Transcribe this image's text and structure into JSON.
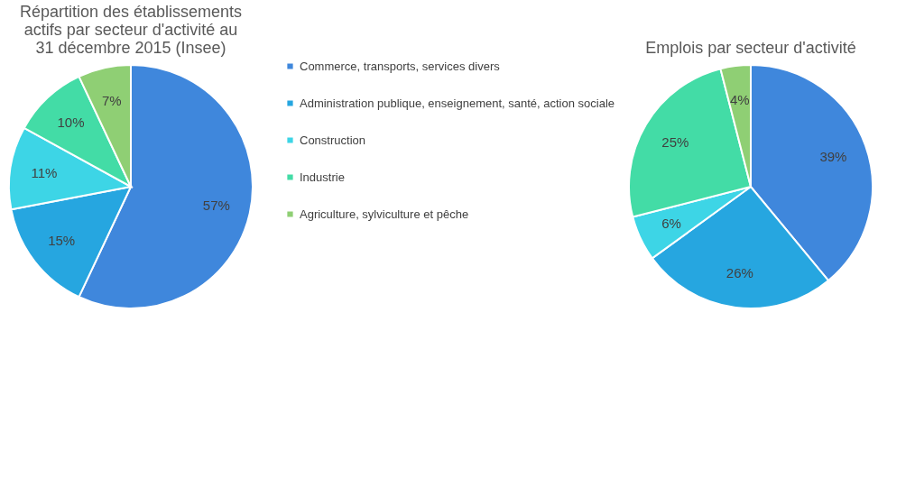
{
  "chart_data": [
    {
      "type": "pie",
      "title": "Répartition des établissements actifs par secteur d'activité au 31 décembre 2015 (Insee)",
      "categories": [
        "Commerce, transports, services divers",
        "Administration publique, enseignement, santé, action sociale",
        "Construction",
        "Industrie",
        "Agriculture, sylviculture et pêche"
      ],
      "values": [
        57,
        15,
        11,
        10,
        7
      ],
      "value_labels": [
        "57%",
        "15%",
        "11%",
        "10%",
        "7%"
      ],
      "colors": [
        "#3f87dc",
        "#26a6e0",
        "#3dd5e6",
        "#43dca6",
        "#8fcf74"
      ],
      "legend": "right"
    },
    {
      "type": "pie",
      "title": "Emplois par secteur d'activité",
      "categories": [
        null,
        null,
        null,
        null,
        null
      ],
      "values": [
        39,
        26,
        6,
        25,
        4
      ],
      "value_labels": [
        "39%",
        "26%",
        "6%",
        "25%",
        "4%"
      ],
      "colors": [
        "#3f87dc",
        "#26a6e0",
        "#3dd5e6",
        "#43dca6",
        "#8fcf74"
      ]
    }
  ]
}
